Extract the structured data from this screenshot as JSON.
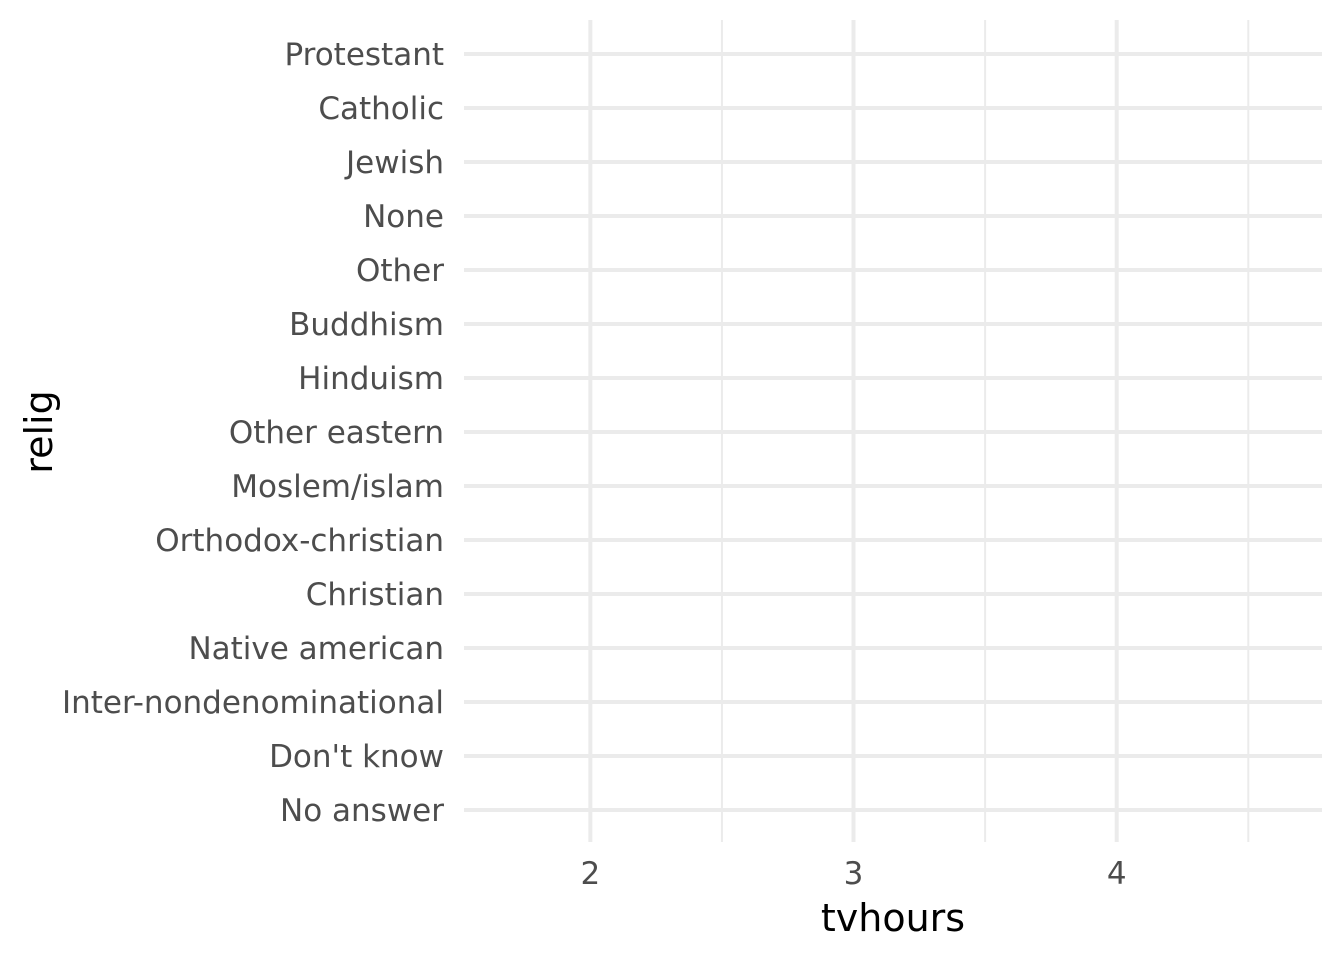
{
  "chart_data": {
    "type": "scatter",
    "title": "",
    "xlabel": "tvhours",
    "ylabel": "relig",
    "xlim": [
      1.52,
      4.78
    ],
    "x_ticks": [
      2,
      3,
      4
    ],
    "x_tick_labels": [
      "2",
      "3",
      "4"
    ],
    "x_minor_ticks": [
      2.5,
      3.5,
      4.5
    ],
    "categories": [
      "Protestant",
      "Catholic",
      "Jewish",
      "None",
      "Other",
      "Buddhism",
      "Hinduism",
      "Other eastern",
      "Moslem/islam",
      "Orthodox-christian",
      "Christian",
      "Native american",
      "Inter-nondenominational",
      "Don't know",
      "No answer"
    ],
    "series": [],
    "grid": true,
    "legend": "none"
  }
}
